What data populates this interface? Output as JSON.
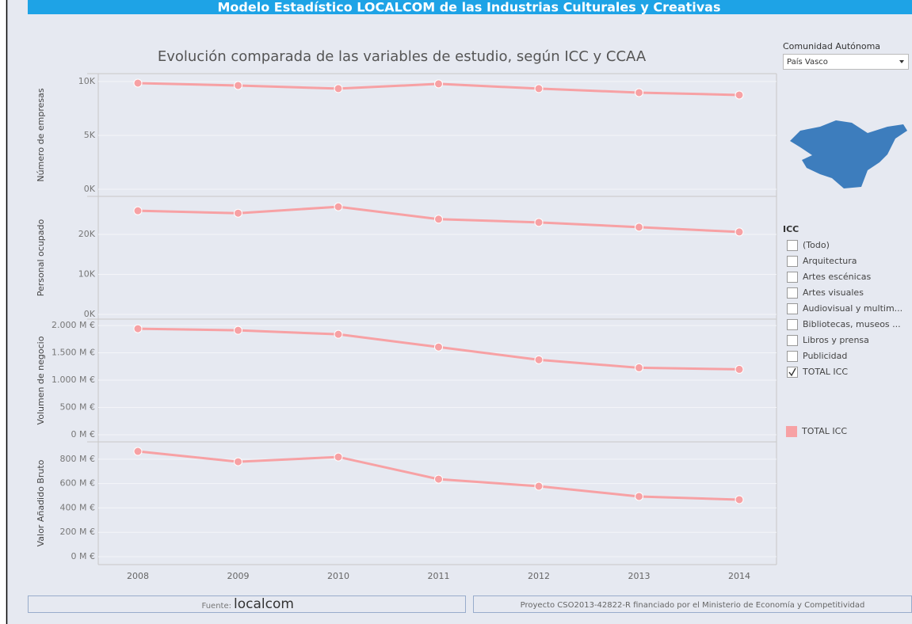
{
  "header": {
    "title": "Modelo Estadístico LOCALCOM de las Industrias Culturales y Creativas"
  },
  "title": "Evolución comparada de las variables de estudio, según ICC y CCAA",
  "chart_data": [
    {
      "type": "line",
      "y_label": "Número de empresas",
      "color": "#f7a1a4",
      "values": [
        9850,
        9630,
        9340,
        9780,
        9340,
        8970,
        8750
      ],
      "ylim": [
        -660,
        10730
      ],
      "grid": true,
      "yticks": [
        {
          "value": 0,
          "label": "0K"
        },
        {
          "value": 5000,
          "label": "5K"
        },
        {
          "value": 10000,
          "label": "10K"
        }
      ]
    },
    {
      "type": "line",
      "y_label": "Personal ocupado",
      "color": "#f7a1a4",
      "values": [
        25900,
        25300,
        26900,
        23800,
        23000,
        21800,
        20600
      ],
      "ylim": [
        -1200,
        29500
      ],
      "grid": true,
      "yticks": [
        {
          "value": 0,
          "label": "0K"
        },
        {
          "value": 10000,
          "label": "10K"
        },
        {
          "value": 20000,
          "label": "20K"
        }
      ]
    },
    {
      "type": "line",
      "y_label": "Volumen de negocio",
      "color": "#f7a1a4",
      "values": [
        1942,
        1912,
        1839,
        1606,
        1372,
        1226,
        1197
      ],
      "ylim": [
        -131,
        2117
      ],
      "grid": true,
      "yticks": [
        {
          "value": 0,
          "label": "0 M €"
        },
        {
          "value": 500,
          "label": "500 M €"
        },
        {
          "value": 1000,
          "label": "1.000 M €"
        },
        {
          "value": 1500,
          "label": "1.500 M €"
        },
        {
          "value": 2000,
          "label": "2.000 M €"
        }
      ]
    },
    {
      "type": "line",
      "y_label": "Valor Añadido Bruto",
      "color": "#f7a1a4",
      "categories": [
        "2008",
        "2009",
        "2010",
        "2011",
        "2012",
        "2013",
        "2014"
      ],
      "values": [
        864,
        779,
        818,
        636,
        578,
        494,
        468
      ],
      "ylim": [
        -65,
        942
      ],
      "grid": true,
      "yticks": [
        {
          "value": 0,
          "label": "0 M €"
        },
        {
          "value": 200,
          "label": "200 M €"
        },
        {
          "value": 400,
          "label": "400 M €"
        },
        {
          "value": 600,
          "label": "600 M €"
        },
        {
          "value": 800,
          "label": "800 M €"
        }
      ]
    }
  ],
  "filters": {
    "comunidad": {
      "label": "Comunidad Autónoma",
      "selected": "País Vasco"
    },
    "icc": {
      "label": "ICC",
      "options": [
        {
          "label": "(Todo)",
          "checked": false
        },
        {
          "label": "Arquitectura",
          "checked": false
        },
        {
          "label": "Artes escénicas",
          "checked": false
        },
        {
          "label": "Artes visuales",
          "checked": false
        },
        {
          "label": "Audiovisual y multim...",
          "checked": false
        },
        {
          "label": "Bibliotecas, museos ...",
          "checked": false
        },
        {
          "label": "Libros y prensa",
          "checked": false
        },
        {
          "label": "Publicidad",
          "checked": false
        },
        {
          "label": "TOTAL ICC",
          "checked": true
        }
      ]
    }
  },
  "legend": {
    "items": [
      "TOTAL ICC"
    ]
  },
  "footer": {
    "source_label": "Fuente:",
    "source_logo": "localcom",
    "project": "Proyecto CSO2013-42822-R financiado por el Ministerio de Economía y Competitividad"
  }
}
